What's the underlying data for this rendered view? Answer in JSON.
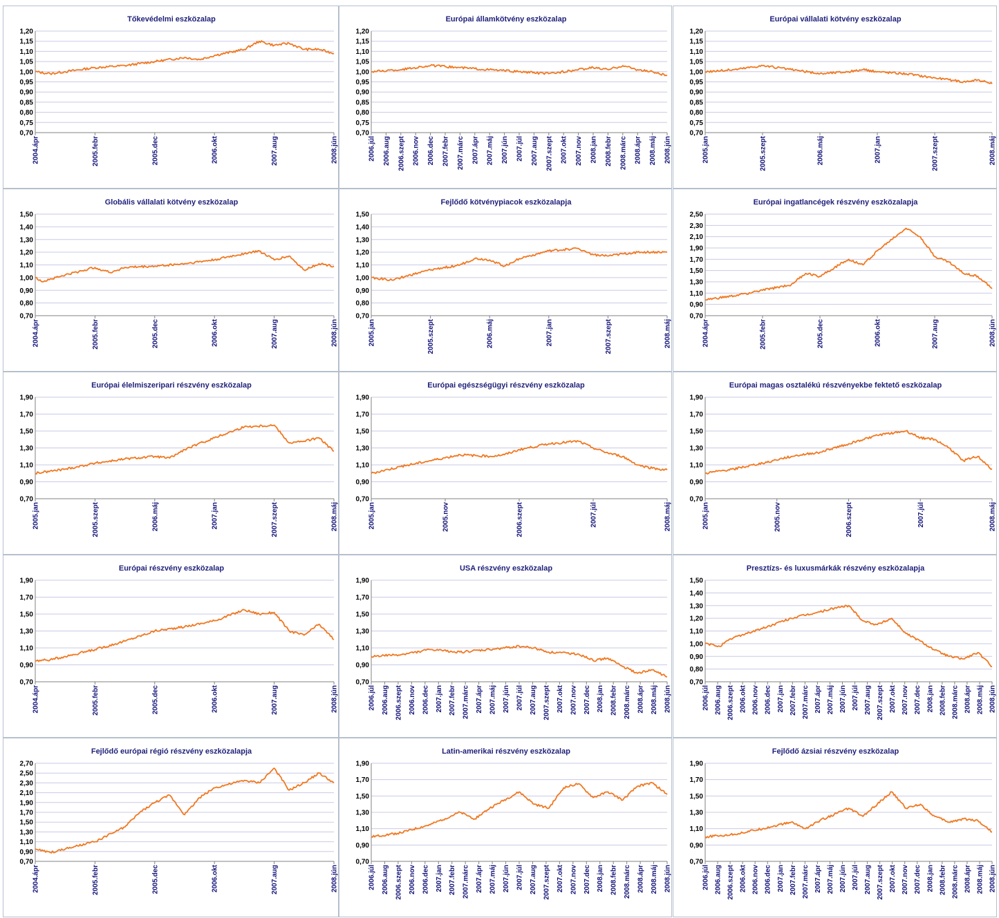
{
  "colors": {
    "line": "#f07820",
    "grid": "#c9c9e6",
    "axis": "#808080",
    "title": "#1f1f7a",
    "xtick": "#14147a",
    "border": "#b4c0cc"
  },
  "chart_data": [
    {
      "type": "line",
      "title": "Tőkevédelmi eszközalap",
      "ylim": [
        0.7,
        1.2
      ],
      "yticks": [
        "1,20",
        "1,15",
        "1,10",
        "1,05",
        "1,00",
        "0,95",
        "0,90",
        "0,85",
        "0,80",
        "0,75",
        "0,70"
      ],
      "xticks": [
        "2004.ápr",
        "2005.febr",
        "2005.dec",
        "2006.okt",
        "2007.aug",
        "2008.jún"
      ],
      "x": [
        0,
        0.05,
        0.1,
        0.2,
        0.3,
        0.4,
        0.5,
        0.55,
        0.6,
        0.7,
        0.75,
        0.8,
        0.85,
        0.9,
        0.95,
        1.0
      ],
      "y": [
        1.0,
        0.99,
        1.0,
        1.02,
        1.03,
        1.05,
        1.07,
        1.06,
        1.08,
        1.11,
        1.15,
        1.13,
        1.14,
        1.11,
        1.11,
        1.09
      ]
    },
    {
      "type": "line",
      "title": "Európai államkötvény eszközalap",
      "ylim": [
        0.7,
        1.2
      ],
      "yticks": [
        "1,20",
        "1,15",
        "1,10",
        "1,05",
        "1,00",
        "0,95",
        "0,90",
        "0,85",
        "0,80",
        "0,75",
        "0,70"
      ],
      "xticks": [
        "2006.júl",
        "2006.aug",
        "2006.szept",
        "2006.nov",
        "2006.dec",
        "2007.febr",
        "2007.márc",
        "2007.ápr",
        "2007.máj",
        "2007.jún",
        "2007.júl",
        "2007.aug",
        "2007.szept",
        "2007.okt",
        "2007.nov",
        "2008.jan",
        "2008.febr",
        "2008.márc",
        "2008.ápr",
        "2008.máj",
        "2008.jún"
      ],
      "x": [
        0,
        0.1,
        0.2,
        0.3,
        0.4,
        0.5,
        0.6,
        0.7,
        0.75,
        0.8,
        0.85,
        0.9,
        0.95,
        1.0
      ],
      "y": [
        1.0,
        1.01,
        1.03,
        1.02,
        1.01,
        1.0,
        0.99,
        1.01,
        1.02,
        1.01,
        1.03,
        1.01,
        1.0,
        0.98
      ]
    },
    {
      "type": "line",
      "title": "Európai vállalati kötvény eszközalap",
      "ylim": [
        0.7,
        1.2
      ],
      "yticks": [
        "1,20",
        "1,15",
        "1,10",
        "1,05",
        "1,00",
        "0,95",
        "0,90",
        "0,85",
        "0,80",
        "0,75",
        "0,70"
      ],
      "xticks": [
        "2005.jan",
        "2005.szept",
        "2006.máj",
        "2007.jan",
        "2007.szept",
        "2008.máj"
      ],
      "x": [
        0,
        0.1,
        0.2,
        0.3,
        0.4,
        0.5,
        0.55,
        0.6,
        0.7,
        0.8,
        0.85,
        0.9,
        0.95,
        1.0
      ],
      "y": [
        1.0,
        1.01,
        1.03,
        1.01,
        0.99,
        1.0,
        1.01,
        1.0,
        0.99,
        0.97,
        0.96,
        0.95,
        0.96,
        0.94
      ]
    },
    {
      "type": "line",
      "title": "Globális vállalati kötvény eszközalap",
      "ylim": [
        0.7,
        1.5
      ],
      "yticks": [
        "1,50",
        "1,40",
        "1,30",
        "1,20",
        "1,10",
        "1,00",
        "0,90",
        "0,80",
        "0,70"
      ],
      "xticks": [
        "2004.ápr",
        "2005.febr",
        "2005.dec",
        "2006.okt",
        "2007.aug",
        "2008.jún"
      ],
      "x": [
        0,
        0.02,
        0.1,
        0.2,
        0.25,
        0.3,
        0.4,
        0.5,
        0.6,
        0.7,
        0.75,
        0.8,
        0.85,
        0.9,
        0.95,
        1.0
      ],
      "y": [
        1.0,
        0.97,
        1.02,
        1.08,
        1.04,
        1.08,
        1.09,
        1.11,
        1.14,
        1.19,
        1.21,
        1.14,
        1.17,
        1.06,
        1.11,
        1.09
      ]
    },
    {
      "type": "line",
      "title": "Fejlődő kötvénypiacok eszközalapja",
      "ylim": [
        0.7,
        1.5
      ],
      "yticks": [
        "1,50",
        "1,40",
        "1,30",
        "1,20",
        "1,10",
        "1,00",
        "0,90",
        "0,80",
        "0,70"
      ],
      "xticks": [
        "2005.jan",
        "2005.szept",
        "2006.máj",
        "2007.jan",
        "2007.szept",
        "2008.máj"
      ],
      "x": [
        0,
        0.07,
        0.1,
        0.2,
        0.3,
        0.35,
        0.4,
        0.45,
        0.5,
        0.6,
        0.7,
        0.75,
        0.8,
        0.9,
        1.0
      ],
      "y": [
        1.0,
        0.98,
        1.0,
        1.06,
        1.1,
        1.15,
        1.14,
        1.09,
        1.15,
        1.21,
        1.23,
        1.18,
        1.17,
        1.2,
        1.2
      ]
    },
    {
      "type": "line",
      "title": "Európai ingatlancégek részvény eszközalapja",
      "ylim": [
        0.7,
        2.5
      ],
      "yticks": [
        "2,50",
        "2,30",
        "2,10",
        "1,90",
        "1,70",
        "1,50",
        "1,30",
        "1,10",
        "0,90",
        "0,70"
      ],
      "xticks": [
        "2004.ápr",
        "2005.febr",
        "2005.dec",
        "2006.okt",
        "2007.aug",
        "2008.jún"
      ],
      "x": [
        0,
        0.1,
        0.2,
        0.3,
        0.35,
        0.4,
        0.45,
        0.5,
        0.55,
        0.6,
        0.65,
        0.7,
        0.75,
        0.8,
        0.85,
        0.9,
        0.95,
        1.0
      ],
      "y": [
        0.98,
        1.05,
        1.15,
        1.25,
        1.45,
        1.4,
        1.55,
        1.7,
        1.6,
        1.85,
        2.05,
        2.25,
        2.1,
        1.75,
        1.65,
        1.45,
        1.4,
        1.18
      ]
    },
    {
      "type": "line",
      "title": "Európai élelmiszeripari részvény eszközalap",
      "ylim": [
        0.7,
        1.9
      ],
      "yticks": [
        "1,90",
        "1,70",
        "1,50",
        "1,30",
        "1,10",
        "0,90",
        "0,70"
      ],
      "xticks": [
        "2005.jan",
        "2005.szept",
        "2006.máj",
        "2007.jan",
        "2007.szept",
        "2008.máj"
      ],
      "x": [
        0,
        0.1,
        0.2,
        0.3,
        0.4,
        0.45,
        0.5,
        0.6,
        0.7,
        0.8,
        0.85,
        0.9,
        0.95,
        1.0
      ],
      "y": [
        1.0,
        1.05,
        1.12,
        1.17,
        1.2,
        1.18,
        1.28,
        1.42,
        1.55,
        1.57,
        1.36,
        1.38,
        1.42,
        1.26
      ]
    },
    {
      "type": "line",
      "title": "Európai egészségügyi részvény eszközalap",
      "ylim": [
        0.7,
        1.9
      ],
      "yticks": [
        "1,90",
        "1,70",
        "1,50",
        "1,30",
        "1,10",
        "0,90",
        "0,70"
      ],
      "xticks": [
        "2005.jan",
        "2005.nov",
        "2006.szept",
        "2007.júl",
        "2008.máj"
      ],
      "x": [
        0,
        0.1,
        0.2,
        0.3,
        0.4,
        0.45,
        0.5,
        0.6,
        0.7,
        0.75,
        0.8,
        0.85,
        0.9,
        0.95,
        1.0
      ],
      "y": [
        1.0,
        1.08,
        1.15,
        1.22,
        1.2,
        1.22,
        1.28,
        1.35,
        1.38,
        1.3,
        1.24,
        1.2,
        1.1,
        1.06,
        1.04
      ]
    },
    {
      "type": "line",
      "title": "Európai magas osztalékú részvényekbe fektető eszközalap",
      "ylim": [
        0.7,
        1.9
      ],
      "yticks": [
        "1,90",
        "1,70",
        "1,50",
        "1,30",
        "1,10",
        "0,90",
        "0,70"
      ],
      "xticks": [
        "2005.jan",
        "2005.nov",
        "2006.szept",
        "2007.júl",
        "2008.máj"
      ],
      "x": [
        0,
        0.1,
        0.2,
        0.3,
        0.4,
        0.5,
        0.6,
        0.7,
        0.75,
        0.8,
        0.85,
        0.9,
        0.95,
        1.0
      ],
      "y": [
        1.0,
        1.05,
        1.12,
        1.2,
        1.25,
        1.35,
        1.45,
        1.5,
        1.42,
        1.4,
        1.3,
        1.15,
        1.2,
        1.05
      ]
    },
    {
      "type": "line",
      "title": "Európai részvény eszközalap",
      "ylim": [
        0.7,
        1.9
      ],
      "yticks": [
        "1,90",
        "1,70",
        "1,50",
        "1,30",
        "1,10",
        "0,90",
        "0,70"
      ],
      "xticks": [
        "2004.ápr",
        "2005.febr",
        "2005.dec",
        "2006.okt",
        "2007.aug",
        "2008.jún"
      ],
      "x": [
        0,
        0.05,
        0.1,
        0.2,
        0.3,
        0.4,
        0.5,
        0.6,
        0.7,
        0.75,
        0.8,
        0.85,
        0.9,
        0.95,
        1.0
      ],
      "y": [
        0.95,
        0.96,
        1.0,
        1.08,
        1.18,
        1.3,
        1.35,
        1.42,
        1.55,
        1.5,
        1.52,
        1.3,
        1.25,
        1.38,
        1.2
      ]
    },
    {
      "type": "line",
      "title": "USA részvény eszközalap",
      "ylim": [
        0.7,
        1.9
      ],
      "yticks": [
        "1,90",
        "1,70",
        "1,50",
        "1,30",
        "1,10",
        "0,90",
        "0,70"
      ],
      "xticks": [
        "2006.júl",
        "2006.aug",
        "2006.szept",
        "2006.nov",
        "2006.dec",
        "2007.jan",
        "2007.febr",
        "2007.márc",
        "2007.ápr",
        "2007.máj",
        "2007.jún",
        "2007.júl",
        "2007.aug",
        "2007.szept",
        "2007.okt",
        "2007.nov",
        "2007.dec",
        "2008.jan",
        "2008.febr",
        "2008.márc",
        "2008.ápr",
        "2008.máj",
        "2008.jún"
      ],
      "x": [
        0,
        0.1,
        0.2,
        0.3,
        0.4,
        0.5,
        0.55,
        0.6,
        0.7,
        0.75,
        0.8,
        0.85,
        0.9,
        0.95,
        1.0
      ],
      "y": [
        1.0,
        1.02,
        1.08,
        1.05,
        1.08,
        1.12,
        1.1,
        1.05,
        1.03,
        0.95,
        0.98,
        0.88,
        0.8,
        0.84,
        0.76
      ]
    },
    {
      "type": "line",
      "title": "Presztízs- és luxusmárkák részvény eszközalapja",
      "ylim": [
        0.7,
        1.5
      ],
      "yticks": [
        "1,50",
        "1,40",
        "1,30",
        "1,20",
        "1,10",
        "1,00",
        "0,90",
        "0,80",
        "0,70"
      ],
      "xticks": [
        "2006.júl",
        "2006.aug",
        "2006.szept",
        "2006.okt",
        "2006.nov",
        "2006.dec",
        "2007.jan",
        "2007.febr",
        "2007.márc",
        "2007.ápr",
        "2007.máj",
        "2007.jún",
        "2007.júl",
        "2007.aug",
        "2007.szept",
        "2007.okt",
        "2007.nov",
        "2007.dec",
        "2008.jan",
        "2008.febr",
        "2008.márc",
        "2008.ápr",
        "2008.máj",
        "2008.jún"
      ],
      "x": [
        0,
        0.05,
        0.1,
        0.2,
        0.3,
        0.4,
        0.45,
        0.5,
        0.55,
        0.6,
        0.65,
        0.7,
        0.75,
        0.8,
        0.85,
        0.9,
        0.95,
        1.0
      ],
      "y": [
        1.0,
        0.98,
        1.05,
        1.12,
        1.2,
        1.25,
        1.28,
        1.3,
        1.18,
        1.15,
        1.2,
        1.08,
        1.02,
        0.95,
        0.9,
        0.88,
        0.93,
        0.82
      ]
    },
    {
      "type": "line",
      "title": "Fejlődő európai régió részvény eszközalapja",
      "ylim": [
        0.7,
        2.7
      ],
      "yticks": [
        "2,70",
        "2,50",
        "2,30",
        "2,10",
        "1,90",
        "1,70",
        "1,50",
        "1,30",
        "1,10",
        "0,90",
        "0,70"
      ],
      "xticks": [
        "2004.ápr",
        "2005.febr",
        "2005.dec",
        "2006.okt",
        "2007.aug",
        "2008.jún"
      ],
      "x": [
        0,
        0.05,
        0.1,
        0.2,
        0.3,
        0.35,
        0.4,
        0.45,
        0.5,
        0.55,
        0.6,
        0.7,
        0.75,
        0.8,
        0.85,
        0.9,
        0.95,
        1.0
      ],
      "y": [
        0.95,
        0.88,
        0.95,
        1.1,
        1.4,
        1.7,
        1.9,
        2.05,
        1.65,
        2.0,
        2.2,
        2.35,
        2.3,
        2.6,
        2.15,
        2.3,
        2.5,
        2.3
      ]
    },
    {
      "type": "line",
      "title": "Latin-amerikai részvény eszközalap",
      "ylim": [
        0.7,
        1.9
      ],
      "yticks": [
        "1,90",
        "1,70",
        "1,50",
        "1,30",
        "1,10",
        "0,90",
        "0,70"
      ],
      "xticks": [
        "2006.júl",
        "2006.aug",
        "2006.szept",
        "2006.nov",
        "2006.dec",
        "2007.jan",
        "2007.febr",
        "2007.márc",
        "2007.ápr",
        "2007.máj",
        "2007.jún",
        "2007.júl",
        "2007.aug",
        "2007.szept",
        "2007.okt",
        "2007.nov",
        "2007.dec",
        "2008.jan",
        "2008.febr",
        "2008.márc",
        "2008.ápr",
        "2008.máj",
        "2008.jún"
      ],
      "x": [
        0,
        0.1,
        0.2,
        0.3,
        0.35,
        0.4,
        0.5,
        0.55,
        0.6,
        0.65,
        0.7,
        0.75,
        0.8,
        0.85,
        0.9,
        0.95,
        1.0
      ],
      "y": [
        1.0,
        1.05,
        1.15,
        1.3,
        1.22,
        1.35,
        1.55,
        1.4,
        1.35,
        1.6,
        1.65,
        1.48,
        1.55,
        1.45,
        1.62,
        1.66,
        1.52
      ]
    },
    {
      "type": "line",
      "title": "Fejlődő ázsiai részvény eszközalap",
      "ylim": [
        0.7,
        1.9
      ],
      "yticks": [
        "1,90",
        "1,70",
        "1,50",
        "1,30",
        "1,10",
        "0,90",
        "0,70"
      ],
      "xticks": [
        "2006.júl",
        "2006.aug",
        "2006.szept",
        "2006.okt",
        "2006.nov",
        "2006.dec",
        "2007.jan",
        "2007.febr",
        "2007.márc",
        "2007.ápr",
        "2007.máj",
        "2007.jún",
        "2007.júl",
        "2007.aug",
        "2007.szept",
        "2007.okt",
        "2007.nov",
        "2007.dec",
        "2008.jan",
        "2008.febr",
        "2008.márc",
        "2008.ápr",
        "2008.máj",
        "2008.jún"
      ],
      "x": [
        0,
        0.1,
        0.2,
        0.3,
        0.35,
        0.4,
        0.5,
        0.55,
        0.6,
        0.65,
        0.7,
        0.75,
        0.8,
        0.85,
        0.9,
        0.95,
        1.0
      ],
      "y": [
        1.0,
        1.03,
        1.1,
        1.18,
        1.1,
        1.2,
        1.35,
        1.25,
        1.4,
        1.55,
        1.35,
        1.4,
        1.25,
        1.18,
        1.22,
        1.2,
        1.06
      ]
    }
  ]
}
